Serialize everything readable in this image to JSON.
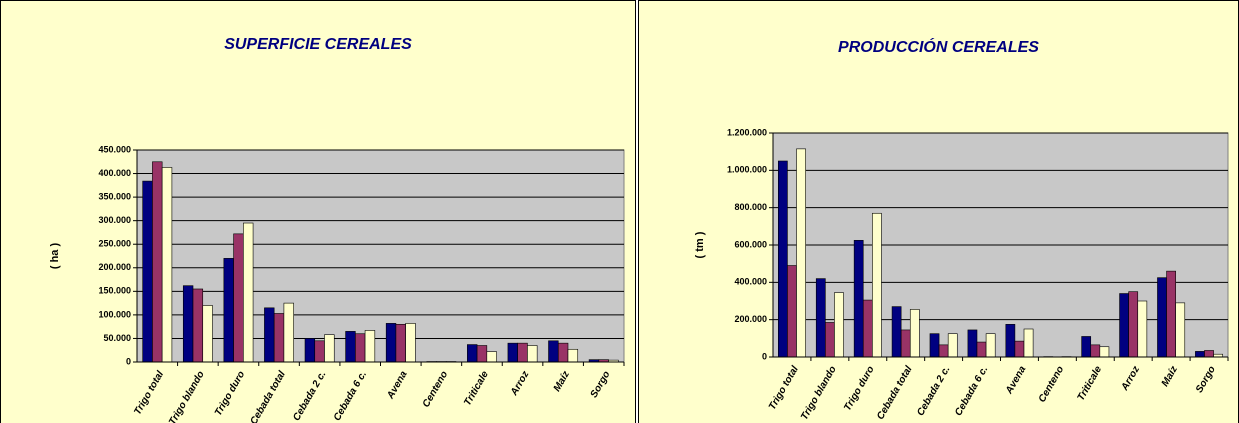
{
  "chart_data": [
    {
      "type": "bar",
      "title": "SUPERFICIE CEREALES",
      "y_label": "( ha )",
      "categories": [
        "Trigo total",
        "Trigo blando",
        "Trigo duro",
        "Cebada total",
        "Cebada 2 c.",
        "Cebada 6 c.",
        "Avena",
        "Centeno",
        "Triticale",
        "Arroz",
        "Maíz",
        "Sorgo"
      ],
      "series": [
        {
          "color": "#000080",
          "values": [
            384000,
            162000,
            220000,
            115000,
            50000,
            65000,
            82000,
            1000,
            37000,
            40000,
            45000,
            5000
          ]
        },
        {
          "color": "#993366",
          "values": [
            425000,
            155000,
            272000,
            103000,
            45000,
            60000,
            80000,
            1000,
            35000,
            40000,
            40000,
            5000
          ]
        },
        {
          "color": "#FFFFCC",
          "values": [
            413000,
            120000,
            295000,
            125000,
            58000,
            67000,
            82000,
            1000,
            22000,
            35000,
            27000,
            4000
          ]
        }
      ],
      "ylim": [
        0,
        450000
      ],
      "yticks": [
        0,
        {
          "value": 50000,
          "label": "50.000"
        },
        {
          "value": 100000,
          "label": "100.000"
        },
        {
          "value": 150000,
          "label": "150.000"
        },
        {
          "value": 200000,
          "label": "200.000"
        },
        {
          "value": 250000,
          "label": "250.000"
        },
        {
          "value": 300000,
          "label": "300.000"
        },
        {
          "value": 350000,
          "label": "350.000"
        },
        {
          "value": 400000,
          "label": "400.000"
        },
        {
          "value": 450000,
          "label": "450.000"
        }
      ],
      "grid": true
    },
    {
      "type": "bar",
      "title": "PRODUCCIÓN CEREALES",
      "y_label": "( tm )",
      "categories": [
        "Trigo total",
        "Trigo blando",
        "Trigo duro",
        "Cebada total",
        "Cebada 2 c.",
        "Cebada 6 c.",
        "Avena",
        "Centeno",
        "Triticale",
        "Arroz",
        "Maíz",
        "Sorgo"
      ],
      "series": [
        {
          "color": "#000080",
          "values": [
            1050000,
            420000,
            625000,
            270000,
            125000,
            145000,
            175000,
            2000,
            110000,
            340000,
            425000,
            30000
          ]
        },
        {
          "color": "#993366",
          "values": [
            490000,
            185000,
            305000,
            145000,
            65000,
            80000,
            85000,
            1000,
            65000,
            350000,
            460000,
            35000
          ]
        },
        {
          "color": "#FFFFCC",
          "values": [
            1115000,
            345000,
            770000,
            255000,
            125000,
            125000,
            150000,
            2000,
            55000,
            300000,
            290000,
            15000
          ]
        }
      ],
      "ylim": [
        0,
        1200000
      ],
      "yticks": [
        0,
        {
          "value": 200000,
          "label": "200.000"
        },
        {
          "value": 400000,
          "label": "400.000"
        },
        {
          "value": 600000,
          "label": "600.000"
        },
        {
          "value": 800000,
          "label": "800.000"
        },
        {
          "value": 1000000,
          "label": "1.000.000"
        },
        {
          "value": 1200000,
          "label": "1.200.000"
        }
      ],
      "grid": true
    }
  ]
}
